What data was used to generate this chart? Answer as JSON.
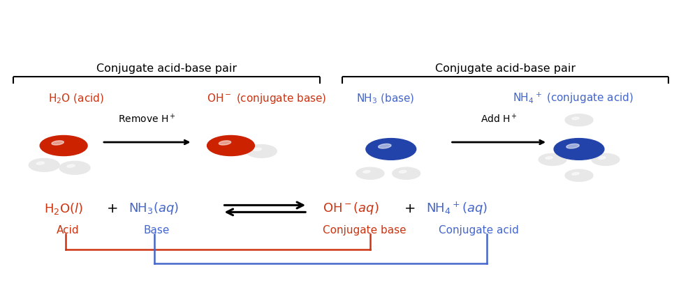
{
  "fig_width": 9.75,
  "fig_height": 4.19,
  "dpi": 100,
  "bg_color": "#ffffff",
  "red_color": "#cc3311",
  "blue_color": "#4466cc",
  "black_color": "#111111",
  "bracket_label": "Conjugate acid-base pair",
  "h2o_acid_label": "H$_2$O (acid)",
  "oh_base_label": "OH$^-$ (conjugate base)",
  "nh3_base_label": "NH$_3$ (base)",
  "nh4_acid_label": "NH$_4$$^+$ (conjugate acid)",
  "remove_h_label": "Remove H$^+$",
  "add_h_label": "Add H$^+$",
  "acid_label": "Acid",
  "base_label": "Base",
  "conj_base_label": "Conjugate base",
  "conj_acid_label": "Conjugate acid",
  "red_atom": "#cc2200",
  "red_atom_hi": "#dd4444",
  "white_atom": "#e8e8e8",
  "white_atom_hi": "#ffffff",
  "blue_atom": "#2244aa",
  "blue_atom_hi": "#4466cc"
}
